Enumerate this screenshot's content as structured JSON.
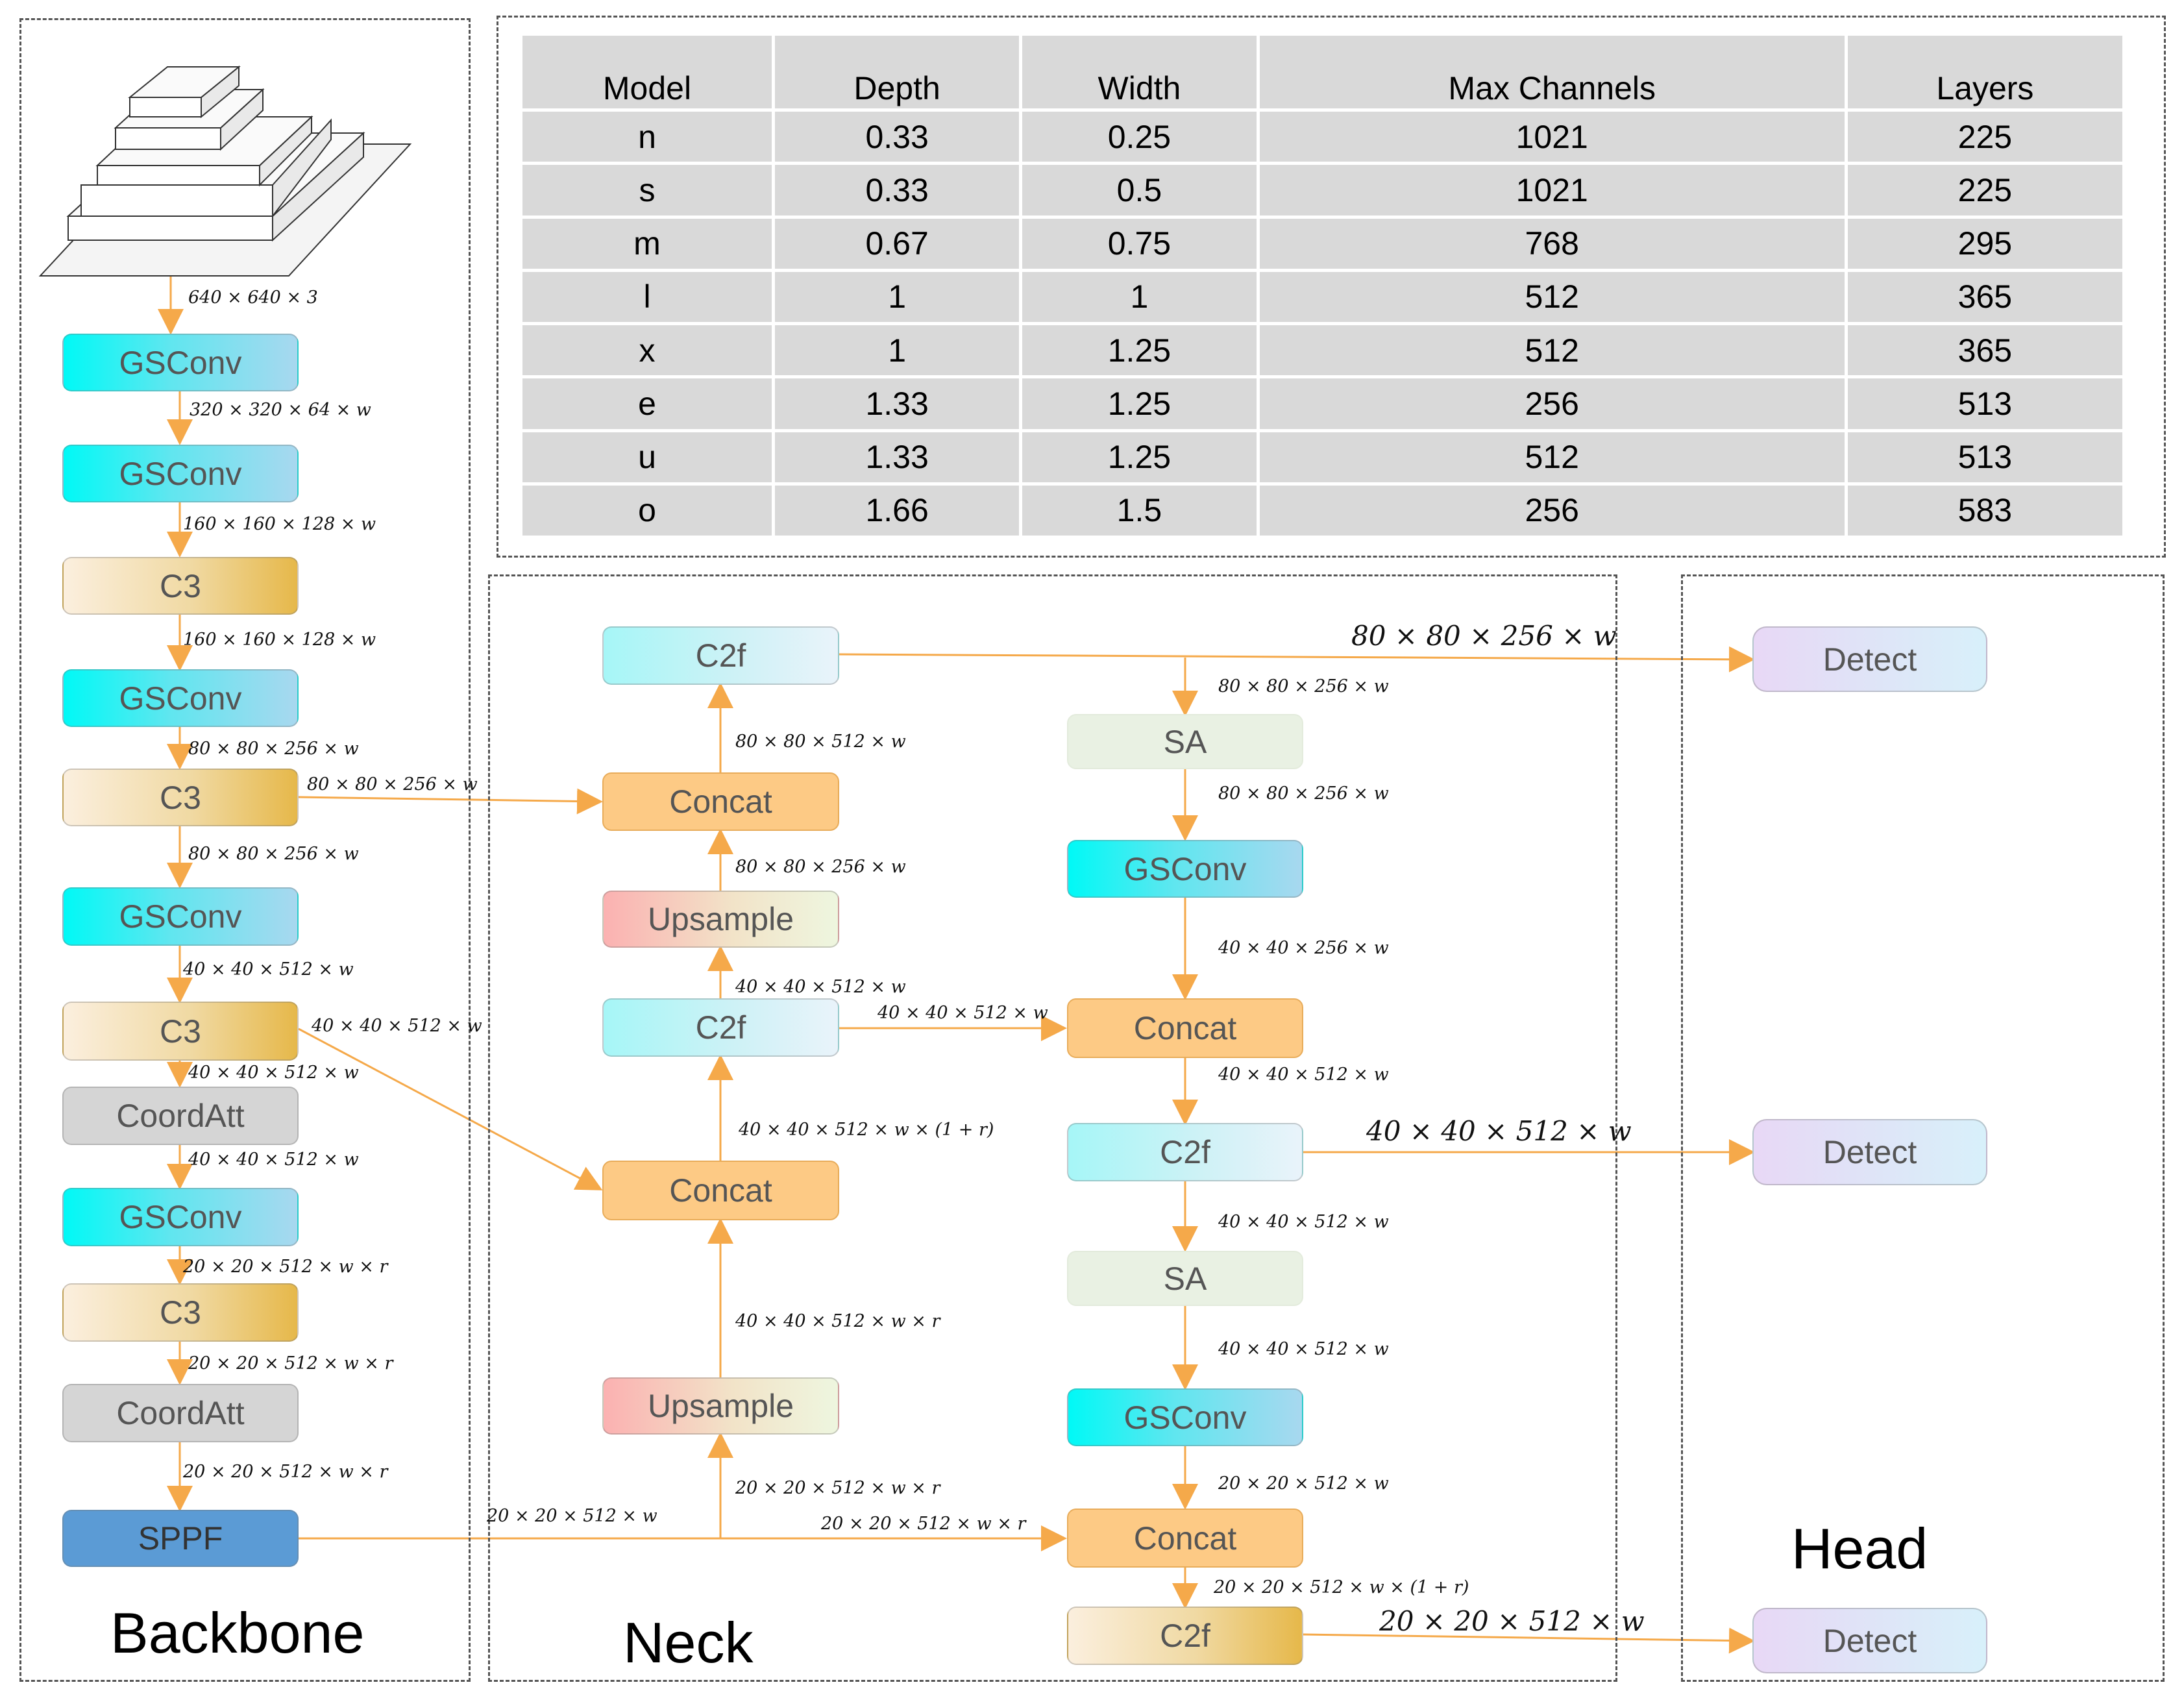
{
  "regions": {
    "backbone": "Backbone",
    "neck": "Neck",
    "head": "Head"
  },
  "table": {
    "headers": [
      "Model",
      "Depth",
      "Width",
      "Max Channels",
      "Layers"
    ],
    "rows": [
      [
        "n",
        "0.33",
        "0.25",
        "1021",
        "225"
      ],
      [
        "s",
        "0.33",
        "0.5",
        "1021",
        "225"
      ],
      [
        "m",
        "0.67",
        "0.75",
        "768",
        "295"
      ],
      [
        "l",
        "1",
        "1",
        "512",
        "365"
      ],
      [
        "x",
        "1",
        "1.25",
        "512",
        "365"
      ],
      [
        "e",
        "1.33",
        "1.25",
        "256",
        "513"
      ],
      [
        "u",
        "1.33",
        "1.25",
        "512",
        "513"
      ],
      [
        "o",
        "1.66",
        "1.5",
        "256",
        "583"
      ]
    ]
  },
  "backbone": {
    "input_label": "640 × 640 × 3",
    "nodes": [
      "GSConv",
      "GSConv",
      "C3",
      "GSConv",
      "C3",
      "GSConv",
      "C3",
      "CoordAtt",
      "GSConv",
      "C3",
      "CoordAtt",
      "SPPF"
    ],
    "edges": [
      "320 × 320 × 64 × w",
      "160 × 160 × 128 × w",
      "160 × 160 × 128 × w",
      "80 × 80 × 256 × w",
      "80 × 80 × 256 × w",
      "40 × 40 × 512 × w",
      "40 × 40 × 512 × w",
      "40 × 40 × 512 × w",
      "20 × 20 × 512 × w × r",
      "20 × 20 × 512 × w × r",
      "20 × 20 × 512 × w × r"
    ],
    "side_labels": {
      "c3_p3": "80 × 80 × 256 × w",
      "c3_p4": "40 × 40 × 512 × w",
      "sppf": "20 × 20 × 512 × w"
    }
  },
  "neck": {
    "left_col": {
      "c2f_top": "C2f",
      "concat_top": "Concat",
      "upsample_top": "Upsample",
      "c2f_mid": "C2f",
      "concat_mid": "Concat",
      "upsample_bottom": "Upsample"
    },
    "right_col": {
      "sa_top": "SA",
      "gsconv_top": "GSConv",
      "concat_mid": "Concat",
      "c2f_mid": "C2f",
      "sa_bottom": "SA",
      "gsconv_bottom": "GSConv",
      "concat_bottom": "Concat",
      "c2f_bottom": "C2f"
    },
    "labels": {
      "l_c2f_top_in": "80 × 80 × 512 × w",
      "l_concat_top_in": "80 × 80 × 256 × w",
      "l_ups_top_in": "40 × 40 × 512 × w",
      "l_c2f_mid_in": "40 × 40 × 512 × w × (1 + r)",
      "l_concat_mid_in": "40 × 40 × 512 × w × r",
      "l_ups_bot_in": "20 × 20 × 512 × w × r",
      "h_c2f_mid": "40 × 40 × 512 × w",
      "h_sppf_concat": "20 × 20 × 512 × w × r",
      "r_sa_top_in": "80 × 80 × 256 × w",
      "r_gs_top_in": "80 × 80 × 256 × w",
      "r_concat_mid_in": "40 × 40 × 256 × w",
      "r_c2f_mid_in": "40 × 40 × 512 × w",
      "r_sa_bot_in": "40 × 40 × 512 × w",
      "r_gs_bot_in": "40 × 40 × 512 × w",
      "r_concat_bot_in": "20 × 20 × 512 × w",
      "r_c2f_bot_in": "20 × 20 × 512 × w × (1 + r)",
      "out_p3": "80 × 80 × 256 × w",
      "out_p4": "40 × 40 × 512 × w",
      "out_p5": "20 × 20 × 512 × w"
    }
  },
  "head": {
    "detect": [
      "Detect",
      "Detect",
      "Detect"
    ]
  },
  "colors": {
    "arrow": "#f5a94a",
    "gsconv": "#00f9f6",
    "c3": "#e6b84a",
    "concat": "#fdca85",
    "sppf": "#5b9bd5"
  }
}
